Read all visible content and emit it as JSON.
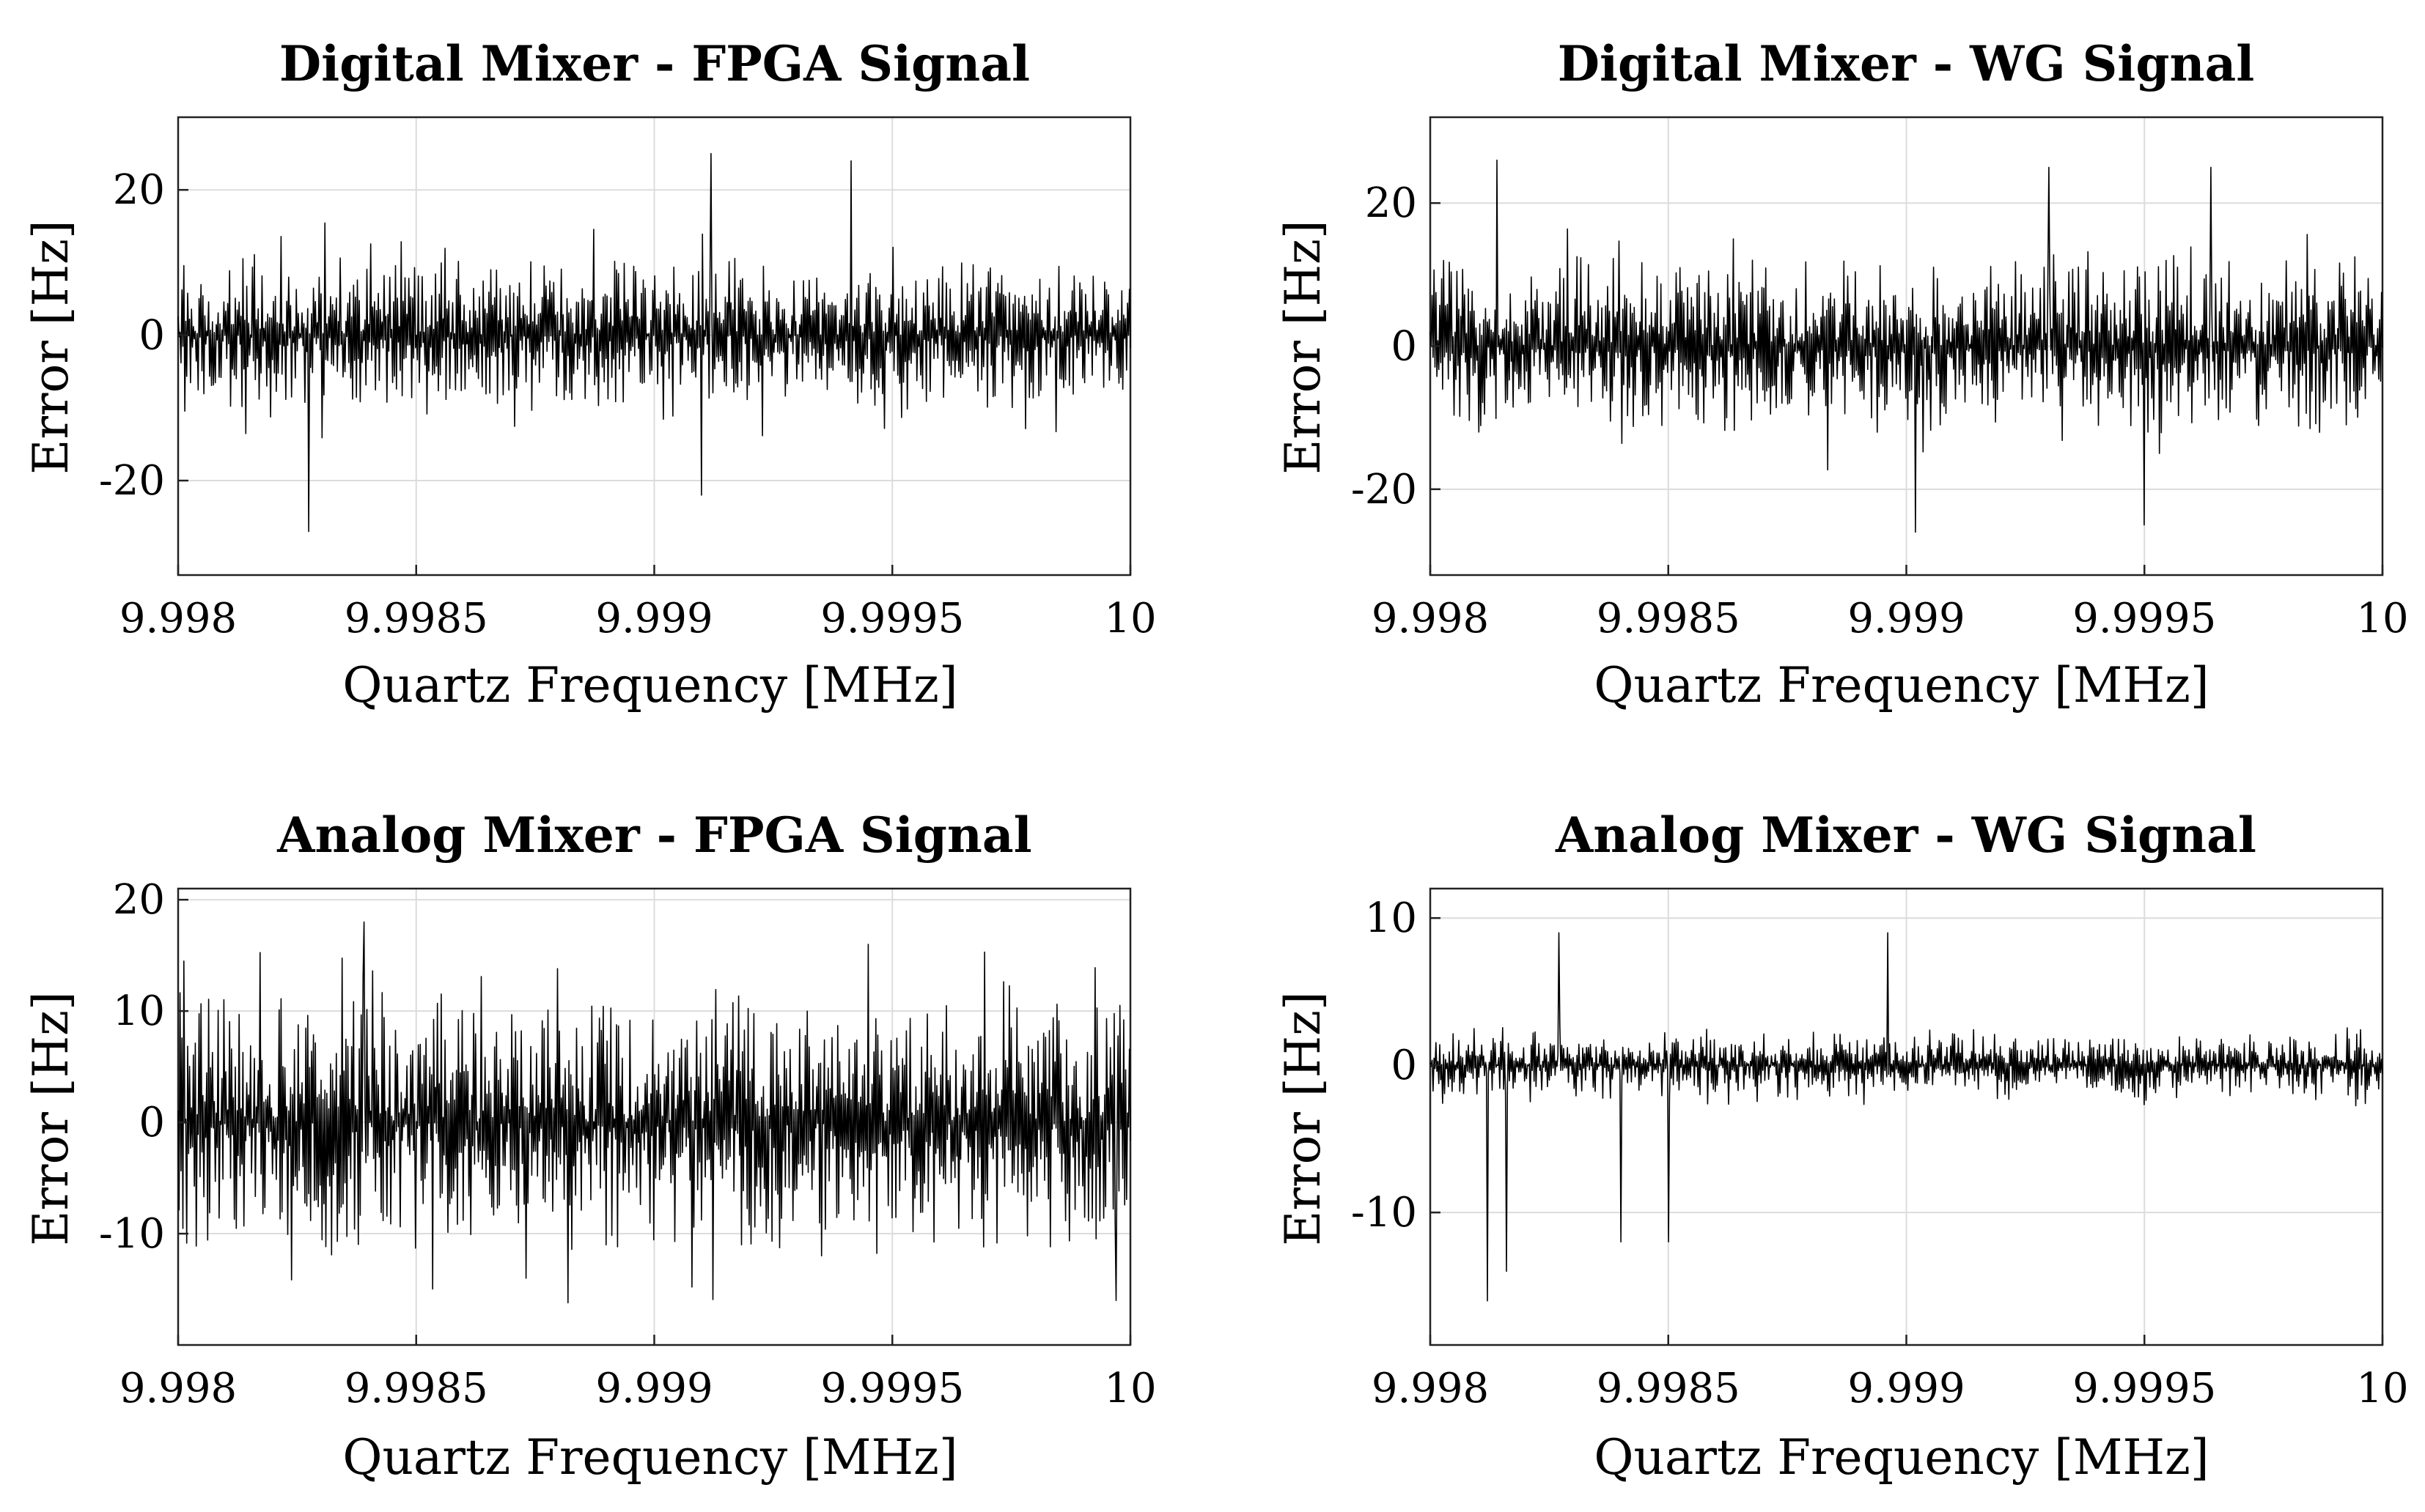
{
  "figure": {
    "background": "#ffffff",
    "line_color": "#000000",
    "grid_color": "#dcdcdc"
  },
  "chart_data": [
    {
      "type": "line",
      "title": "Digital Mixer - FPGA Signal",
      "xlabel": "Quartz Frequency [MHz]",
      "ylabel": "Error [Hz]",
      "xlim": [
        9.998,
        10.0
      ],
      "ylim": [
        -33,
        30
      ],
      "xticks": [
        9.998,
        9.9985,
        9.999,
        9.9995,
        10
      ],
      "xtick_labels": [
        "9.998",
        "9.9985",
        "9.999",
        "9.9995",
        "10"
      ],
      "yticks": [
        -20,
        0,
        20
      ],
      "ytick_labels": [
        "-20",
        "0",
        "20"
      ],
      "grid": true,
      "series": [
        {
          "name": "error",
          "n_points": 1000,
          "amplitude_hz": 8,
          "spikes": [
            [
              0.137,
              -27
            ],
            [
              0.56,
              25
            ],
            [
              0.707,
              24
            ],
            [
              0.55,
              -22
            ]
          ]
        }
      ]
    },
    {
      "type": "line",
      "title": "Digital Mixer - WG Signal",
      "xlabel": "Quartz Frequency [MHz]",
      "ylabel": "Error [Hz]",
      "xlim": [
        9.998,
        10.0
      ],
      "ylim": [
        -32,
        32
      ],
      "xticks": [
        9.998,
        9.9985,
        9.999,
        9.9995,
        10
      ],
      "xtick_labels": [
        "9.998",
        "9.9985",
        "9.999",
        "9.9995",
        "10"
      ],
      "yticks": [
        -20,
        0,
        20
      ],
      "ytick_labels": [
        "-20",
        "0",
        "20"
      ],
      "grid": true,
      "series": [
        {
          "name": "error",
          "n_points": 1000,
          "amplitude_hz": 9,
          "spikes": [
            [
              0.07,
              26
            ],
            [
              0.51,
              -26
            ],
            [
              0.65,
              25
            ],
            [
              0.82,
              25
            ],
            [
              0.75,
              -25
            ]
          ]
        }
      ]
    },
    {
      "type": "line",
      "title": "Analog Mixer - FPGA Signal",
      "xlabel": "Quartz Frequency [MHz]",
      "ylabel": "Error [Hz]",
      "xlim": [
        9.998,
        10.0
      ],
      "ylim": [
        -20,
        21
      ],
      "xticks": [
        9.998,
        9.9985,
        9.999,
        9.9995,
        10
      ],
      "xtick_labels": [
        "9.998",
        "9.9985",
        "9.999",
        "9.9995",
        "10"
      ],
      "yticks": [
        -10,
        0,
        10,
        20
      ],
      "ytick_labels": [
        "-10",
        "0",
        "10",
        "20"
      ],
      "grid": true,
      "series": [
        {
          "name": "error",
          "n_points": 1000,
          "amplitude_hz": 9,
          "spikes": [
            [
              0.195,
              18
            ],
            [
              0.725,
              16
            ],
            [
              0.985,
              -16
            ]
          ]
        }
      ]
    },
    {
      "type": "line",
      "title": "Analog Mixer - WG Signal",
      "xlabel": "Quartz Frequency [MHz]",
      "ylabel": "Error [Hz]",
      "xlim": [
        9.998,
        10.0
      ],
      "ylim": [
        -19,
        12
      ],
      "xticks": [
        9.998,
        9.9985,
        9.999,
        9.9995,
        10
      ],
      "xtick_labels": [
        "9.998",
        "9.9985",
        "9.999",
        "9.9995",
        "10"
      ],
      "yticks": [
        -10,
        0,
        10
      ],
      "ytick_labels": [
        "-10",
        "0",
        "10"
      ],
      "grid": true,
      "series": [
        {
          "name": "error",
          "n_points": 1000,
          "amplitude_hz": 1.6,
          "spikes": [
            [
              0.06,
              -16
            ],
            [
              0.08,
              -14
            ],
            [
              0.135,
              9
            ],
            [
              0.48,
              9
            ],
            [
              0.2,
              -12
            ],
            [
              0.25,
              -12
            ]
          ]
        }
      ]
    }
  ]
}
